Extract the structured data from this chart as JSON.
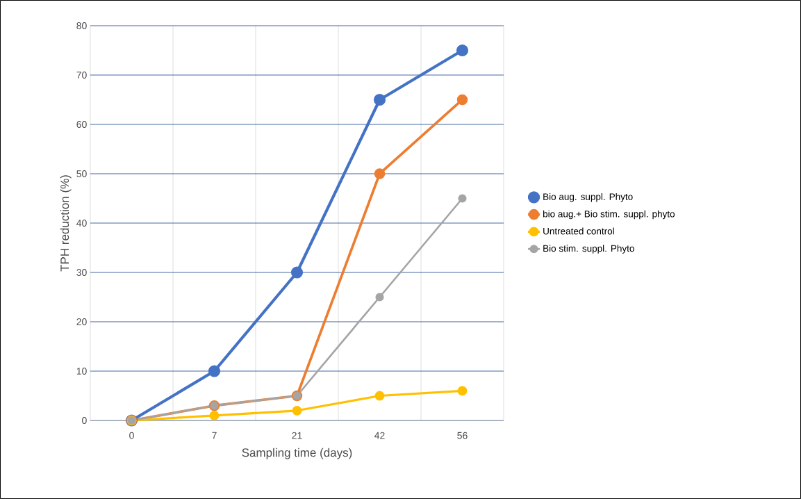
{
  "chart_data": {
    "type": "line",
    "xlabel": "Sampling time (days)",
    "ylabel": "TPH reduction (%)",
    "categories": [
      "0",
      "7",
      "21",
      "42",
      "56"
    ],
    "series": [
      {
        "name": "Bio aug. suppl. Phyto",
        "color": "#4472c4",
        "values": [
          0,
          10,
          30,
          65,
          75
        ]
      },
      {
        "name": "bio aug.+ Bio stim. suppl. phyto",
        "color": "#ed7d31",
        "values": [
          0,
          3,
          5,
          50,
          65
        ]
      },
      {
        "name": "Untreated control",
        "color": "#ffc000",
        "values": [
          0,
          1,
          2,
          5,
          6
        ]
      },
      {
        "name": "Bio stim. suppl. Phyto",
        "color": "#a5a5a5",
        "values": [
          0,
          3,
          5,
          25,
          45
        ]
      }
    ],
    "ylim": [
      0,
      80
    ],
    "yticks": [
      0,
      10,
      20,
      30,
      40,
      50,
      60,
      70,
      80
    ],
    "grid": true,
    "legend": "right",
    "marker": "circle",
    "line_style": "solid"
  }
}
